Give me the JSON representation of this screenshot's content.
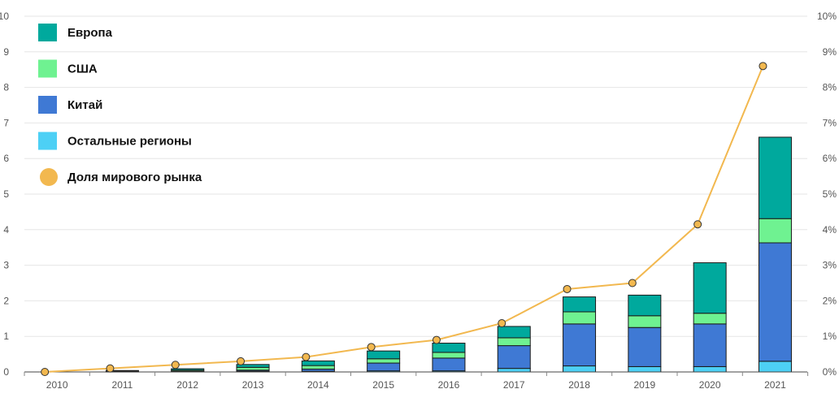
{
  "chart_data": {
    "type": "bar",
    "stacked": true,
    "categories": [
      "2010",
      "2011",
      "2012",
      "2013",
      "2014",
      "2015",
      "2016",
      "2017",
      "2018",
      "2019",
      "2020",
      "2021"
    ],
    "series": [
      {
        "name": "Остальные регионы",
        "color": "#4dd0f5",
        "values": [
          0.0,
          0.0,
          0.0,
          0.02,
          0.02,
          0.03,
          0.03,
          0.1,
          0.17,
          0.15,
          0.15,
          0.3
        ]
      },
      {
        "name": "Китай",
        "color": "#3f79d4",
        "values": [
          0.0,
          0.01,
          0.02,
          0.03,
          0.06,
          0.22,
          0.36,
          0.64,
          1.18,
          1.1,
          1.2,
          3.33
        ]
      },
      {
        "name": "США",
        "color": "#6ff291",
        "values": [
          0.0,
          0.01,
          0.03,
          0.08,
          0.1,
          0.12,
          0.16,
          0.22,
          0.34,
          0.33,
          0.3,
          0.68
        ]
      },
      {
        "name": "Европа",
        "color": "#00a99d",
        "values": [
          0.0,
          0.02,
          0.04,
          0.08,
          0.13,
          0.22,
          0.26,
          0.32,
          0.42,
          0.58,
          1.42,
          2.29
        ]
      }
    ],
    "line_series": {
      "name": "Доля мирового рынка",
      "color": "#f2b84f",
      "axis": "right",
      "values": [
        0.0,
        0.1,
        0.2,
        0.3,
        0.42,
        0.7,
        0.9,
        1.37,
        2.33,
        2.5,
        4.15,
        8.6
      ]
    },
    "ylim_left": [
      0,
      10
    ],
    "ylim_right": [
      0,
      10
    ],
    "y_ticks_left": [
      "0",
      "1",
      "2",
      "3",
      "4",
      "5",
      "6",
      "7",
      "8",
      "9",
      "10"
    ],
    "y_ticks_right": [
      "0%",
      "1%",
      "2%",
      "3%",
      "4%",
      "5%",
      "6%",
      "7%",
      "8%",
      "9%",
      "10%"
    ],
    "legend": [
      "Европа",
      "США",
      "Китай",
      "Остальные регионы",
      "Доля мирового рынка"
    ],
    "legend_position": "top-left",
    "grid": true,
    "title": "",
    "xlabel": "",
    "ylabel": ""
  }
}
